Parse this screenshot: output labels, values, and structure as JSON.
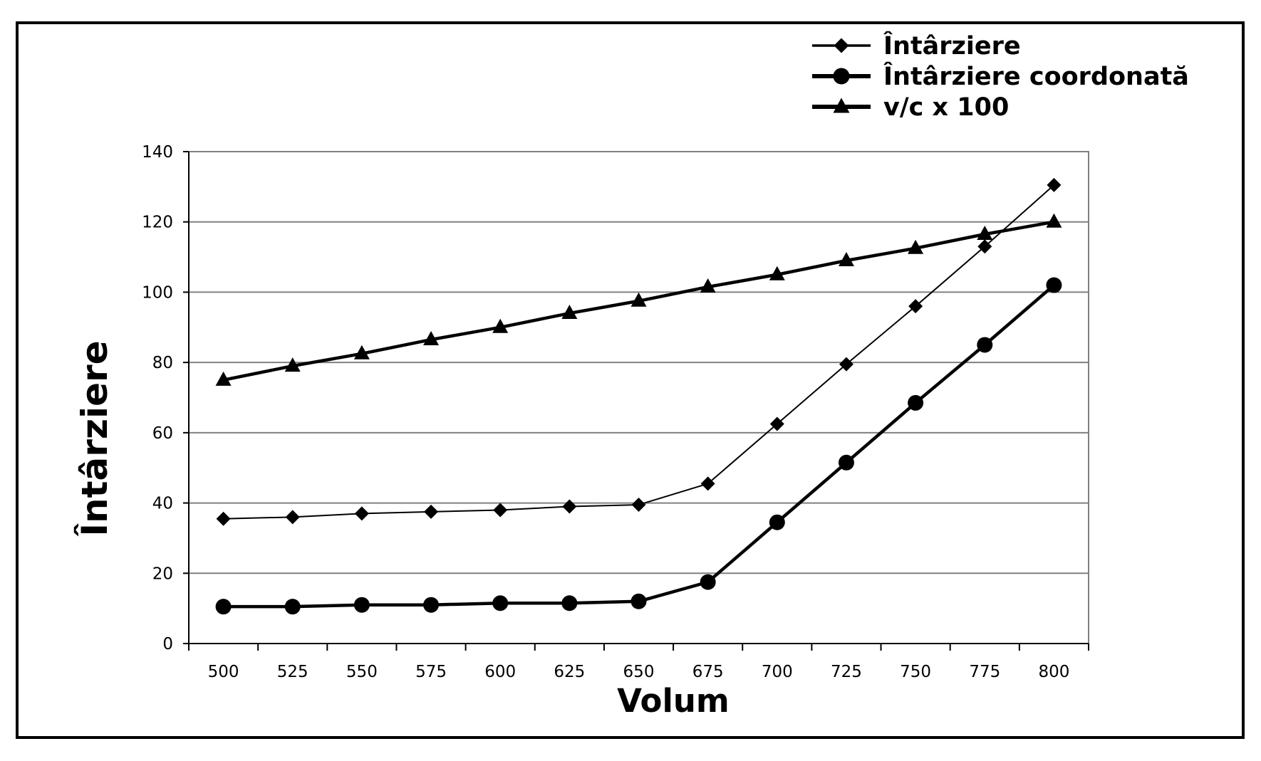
{
  "chart_data": {
    "type": "line",
    "title": "",
    "xlabel": "Volum",
    "ylabel": "Întârziere",
    "categories": [
      "500",
      "525",
      "550",
      "575",
      "600",
      "625",
      "650",
      "675",
      "700",
      "725",
      "750",
      "775",
      "800"
    ],
    "ylim": [
      0,
      140
    ],
    "yticks": [
      "0",
      "20",
      "40",
      "60",
      "80",
      "100",
      "120",
      "140"
    ],
    "grid": "horizontal",
    "legend_position": "top-right",
    "series": [
      {
        "name": "Întârziere",
        "marker": "diamond",
        "values": [
          35.5,
          36,
          37,
          37.5,
          38,
          39,
          39.5,
          45.5,
          62.5,
          79.5,
          96,
          113,
          130.5
        ]
      },
      {
        "name": "Întârziere coordonată",
        "marker": "circle",
        "values": [
          10.5,
          10.5,
          11,
          11,
          11.5,
          11.5,
          12,
          17.5,
          34.5,
          51.5,
          68.5,
          85,
          102
        ]
      },
      {
        "name": "v/c x 100",
        "marker": "triangle",
        "values": [
          75,
          79,
          82.5,
          86.5,
          90,
          94,
          97.5,
          101.5,
          105,
          109,
          112.5,
          116.5,
          120
        ]
      }
    ]
  }
}
